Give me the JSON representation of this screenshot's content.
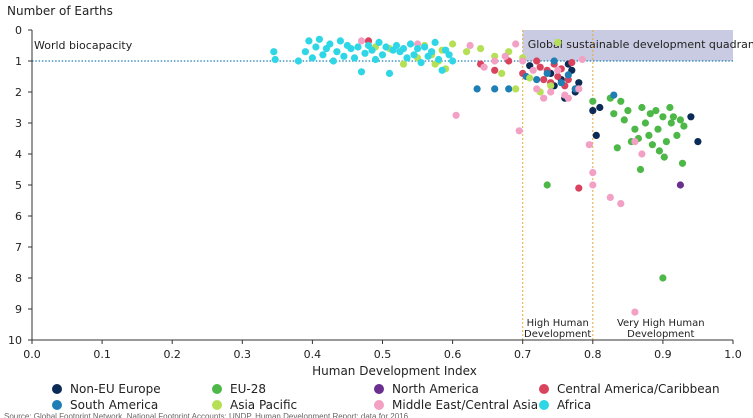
{
  "chart_data": {
    "type": "scatter",
    "ylabel": "Number of Earths",
    "xlabel": "Human Development Index",
    "xlim": [
      0,
      1.0
    ],
    "ylim": [
      0,
      10
    ],
    "y_inverted": true,
    "x_ticks": [
      "0.0",
      "0.1",
      "0.2",
      "0.3",
      "0.4",
      "0.5",
      "0.6",
      "0.7",
      "0.8",
      "0.9",
      "1.0"
    ],
    "y_ticks": [
      "0",
      "1",
      "2",
      "3",
      "4",
      "5",
      "6",
      "7",
      "8",
      "9",
      "10"
    ],
    "reference_line": {
      "label": "World biocapacity",
      "y": 1
    },
    "quadrant": {
      "label": "Global sustainable development quadrant",
      "x": [
        0.7,
        1.0
      ],
      "y": [
        0,
        1
      ]
    },
    "vertical_lines": [
      {
        "x": 0.7,
        "label_line1": "High Human",
        "label_line2": "Development"
      },
      {
        "x": 0.8,
        "label_line1": "Very High Human",
        "label_line2": "Development"
      }
    ],
    "colors": {
      "quadrant_fill": "#c9cbe3",
      "reference_line": "#1f7fb5",
      "vertical_line": "#e6a93c",
      "axis": "#333333"
    },
    "series": [
      {
        "name": "Non-EU Europe",
        "color": "#0b2a55",
        "points": [
          [
            0.71,
            1.15
          ],
          [
            0.74,
            1.4
          ],
          [
            0.745,
            1.8
          ],
          [
            0.755,
            1.6
          ],
          [
            0.76,
            2.2
          ],
          [
            0.765,
            1.1
          ],
          [
            0.77,
            1.3
          ],
          [
            0.775,
            2.0
          ],
          [
            0.78,
            1.7
          ],
          [
            0.8,
            2.6
          ],
          [
            0.805,
            3.4
          ],
          [
            0.81,
            2.5
          ],
          [
            0.94,
            2.8
          ],
          [
            0.95,
            3.6
          ]
        ]
      },
      {
        "name": "EU-28",
        "color": "#4db848",
        "points": [
          [
            0.735,
            5.0
          ],
          [
            0.8,
            2.3
          ],
          [
            0.825,
            2.2
          ],
          [
            0.83,
            2.7
          ],
          [
            0.835,
            3.8
          ],
          [
            0.84,
            2.3
          ],
          [
            0.845,
            2.9
          ],
          [
            0.85,
            2.6
          ],
          [
            0.855,
            3.6
          ],
          [
            0.86,
            3.2
          ],
          [
            0.865,
            3.5
          ],
          [
            0.868,
            4.5
          ],
          [
            0.87,
            2.5
          ],
          [
            0.875,
            3.0
          ],
          [
            0.88,
            3.4
          ],
          [
            0.882,
            2.7
          ],
          [
            0.885,
            3.7
          ],
          [
            0.89,
            2.6
          ],
          [
            0.893,
            3.2
          ],
          [
            0.895,
            3.9
          ],
          [
            0.9,
            2.8
          ],
          [
            0.902,
            4.1
          ],
          [
            0.905,
            3.6
          ],
          [
            0.91,
            2.5
          ],
          [
            0.912,
            3.0
          ],
          [
            0.915,
            2.8
          ],
          [
            0.92,
            3.4
          ],
          [
            0.925,
            2.9
          ],
          [
            0.928,
            4.3
          ],
          [
            0.93,
            3.1
          ],
          [
            0.9,
            8.0
          ]
        ]
      },
      {
        "name": "North America",
        "color": "#6b2f8f",
        "points": [
          [
            0.925,
            5.0
          ]
        ]
      },
      {
        "name": "Central America/Caribbean",
        "color": "#d9435e",
        "points": [
          [
            0.48,
            0.35
          ],
          [
            0.64,
            1.1
          ],
          [
            0.66,
            1.3
          ],
          [
            0.68,
            1.0
          ],
          [
            0.7,
            1.4
          ],
          [
            0.72,
            1.0
          ],
          [
            0.725,
            1.2
          ],
          [
            0.73,
            1.6
          ],
          [
            0.735,
            1.3
          ],
          [
            0.74,
            1.7
          ],
          [
            0.745,
            1.1
          ],
          [
            0.75,
            1.5
          ],
          [
            0.755,
            1.25
          ],
          [
            0.76,
            1.8
          ],
          [
            0.765,
            1.6
          ],
          [
            0.77,
            1.05
          ],
          [
            0.775,
            1.9
          ],
          [
            0.78,
            5.1
          ]
        ]
      },
      {
        "name": "South America",
        "color": "#1f7fb5",
        "points": [
          [
            0.635,
            1.9
          ],
          [
            0.66,
            1.9
          ],
          [
            0.68,
            1.9
          ],
          [
            0.705,
            1.5
          ],
          [
            0.72,
            1.6
          ],
          [
            0.735,
            1.4
          ],
          [
            0.745,
            1.0
          ],
          [
            0.755,
            1.7
          ],
          [
            0.765,
            1.45
          ],
          [
            0.775,
            1.9
          ],
          [
            0.83,
            2.1
          ]
        ]
      },
      {
        "name": "Asia Pacific",
        "color": "#b5e055",
        "points": [
          [
            0.49,
            0.55
          ],
          [
            0.51,
            0.6
          ],
          [
            0.53,
            1.1
          ],
          [
            0.55,
            0.9
          ],
          [
            0.56,
            0.5
          ],
          [
            0.57,
            0.8
          ],
          [
            0.575,
            1.1
          ],
          [
            0.58,
            1.0
          ],
          [
            0.585,
            0.65
          ],
          [
            0.59,
            1.25
          ],
          [
            0.6,
            0.45
          ],
          [
            0.62,
            0.7
          ],
          [
            0.64,
            0.6
          ],
          [
            0.66,
            0.85
          ],
          [
            0.67,
            1.4
          ],
          [
            0.68,
            0.7
          ],
          [
            0.69,
            1.9
          ],
          [
            0.7,
            0.9
          ],
          [
            0.71,
            1.55
          ],
          [
            0.725,
            2.0
          ],
          [
            0.74,
            1.8
          ],
          [
            0.75,
            0.4
          ]
        ]
      },
      {
        "name": "Middle East/Central Asia",
        "color": "#f2a0c4",
        "points": [
          [
            0.47,
            0.35
          ],
          [
            0.55,
            0.45
          ],
          [
            0.605,
            2.75
          ],
          [
            0.625,
            0.5
          ],
          [
            0.645,
            1.2
          ],
          [
            0.66,
            1.0
          ],
          [
            0.675,
            0.85
          ],
          [
            0.69,
            0.45
          ],
          [
            0.695,
            3.25
          ],
          [
            0.7,
            1.0
          ],
          [
            0.715,
            1.3
          ],
          [
            0.72,
            1.9
          ],
          [
            0.73,
            2.2
          ],
          [
            0.74,
            2.0
          ],
          [
            0.75,
            1.3
          ],
          [
            0.76,
            2.1
          ],
          [
            0.765,
            2.2
          ],
          [
            0.78,
            1.9
          ],
          [
            0.785,
            0.95
          ],
          [
            0.795,
            3.7
          ],
          [
            0.8,
            4.6
          ],
          [
            0.8,
            5.0
          ],
          [
            0.825,
            5.4
          ],
          [
            0.84,
            5.6
          ],
          [
            0.86,
            3.6
          ],
          [
            0.87,
            4.0
          ],
          [
            0.86,
            9.1
          ]
        ]
      },
      {
        "name": "Africa",
        "color": "#2fd6e6",
        "points": [
          [
            0.345,
            0.7
          ],
          [
            0.347,
            0.95
          ],
          [
            0.38,
            1.0
          ],
          [
            0.39,
            0.7
          ],
          [
            0.395,
            0.35
          ],
          [
            0.4,
            0.9
          ],
          [
            0.405,
            0.55
          ],
          [
            0.41,
            0.3
          ],
          [
            0.415,
            0.8
          ],
          [
            0.42,
            0.6
          ],
          [
            0.425,
            0.45
          ],
          [
            0.43,
            1.0
          ],
          [
            0.435,
            0.7
          ],
          [
            0.44,
            0.35
          ],
          [
            0.445,
            0.85
          ],
          [
            0.45,
            0.5
          ],
          [
            0.455,
            0.6
          ],
          [
            0.46,
            0.9
          ],
          [
            0.465,
            0.55
          ],
          [
            0.47,
            1.35
          ],
          [
            0.475,
            0.75
          ],
          [
            0.48,
            0.5
          ],
          [
            0.485,
            0.65
          ],
          [
            0.49,
            0.95
          ],
          [
            0.495,
            0.4
          ],
          [
            0.5,
            0.8
          ],
          [
            0.505,
            0.55
          ],
          [
            0.51,
            1.4
          ],
          [
            0.515,
            0.65
          ],
          [
            0.52,
            0.5
          ],
          [
            0.525,
            0.7
          ],
          [
            0.53,
            0.6
          ],
          [
            0.535,
            0.9
          ],
          [
            0.54,
            0.45
          ],
          [
            0.545,
            0.8
          ],
          [
            0.55,
            0.6
          ],
          [
            0.555,
            1.05
          ],
          [
            0.56,
            0.55
          ],
          [
            0.565,
            0.85
          ],
          [
            0.57,
            0.7
          ],
          [
            0.575,
            0.4
          ],
          [
            0.58,
            0.95
          ],
          [
            0.585,
            1.3
          ],
          [
            0.59,
            0.65
          ],
          [
            0.595,
            0.8
          ],
          [
            0.6,
            1.0
          ]
        ]
      }
    ]
  },
  "footnote": "Source: Global Footprint Network, National Footprint Accounts; UNDP, Human Development Report; data for 2016."
}
